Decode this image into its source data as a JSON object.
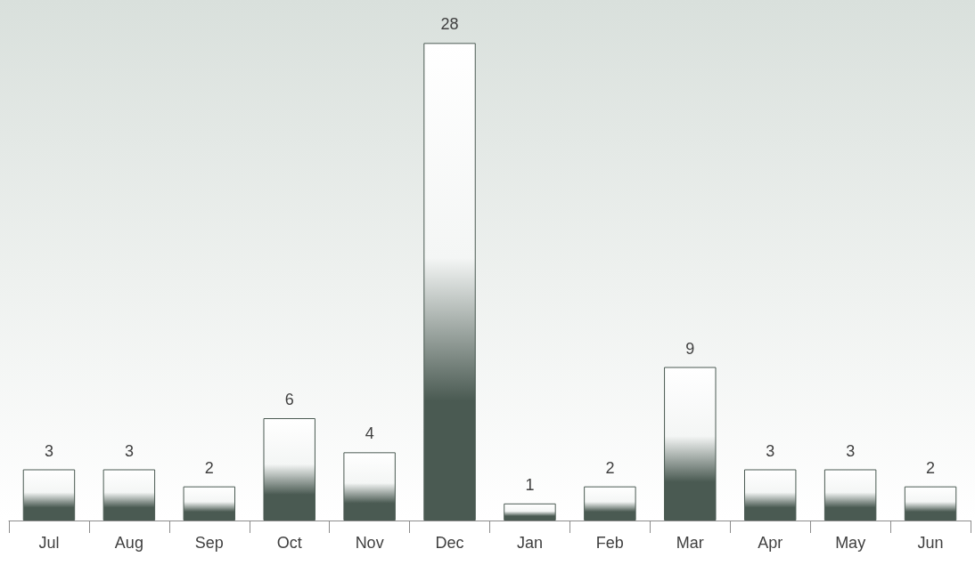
{
  "chart_data": {
    "type": "bar",
    "categories": [
      "Jul",
      "Aug",
      "Sep",
      "Oct",
      "Nov",
      "Dec",
      "Jan",
      "Feb",
      "Mar",
      "Apr",
      "May",
      "Jun"
    ],
    "values": [
      3,
      3,
      2,
      6,
      4,
      28,
      1,
      2,
      9,
      3,
      3,
      2
    ],
    "color": "#4a5a52",
    "data_labels": true
  }
}
